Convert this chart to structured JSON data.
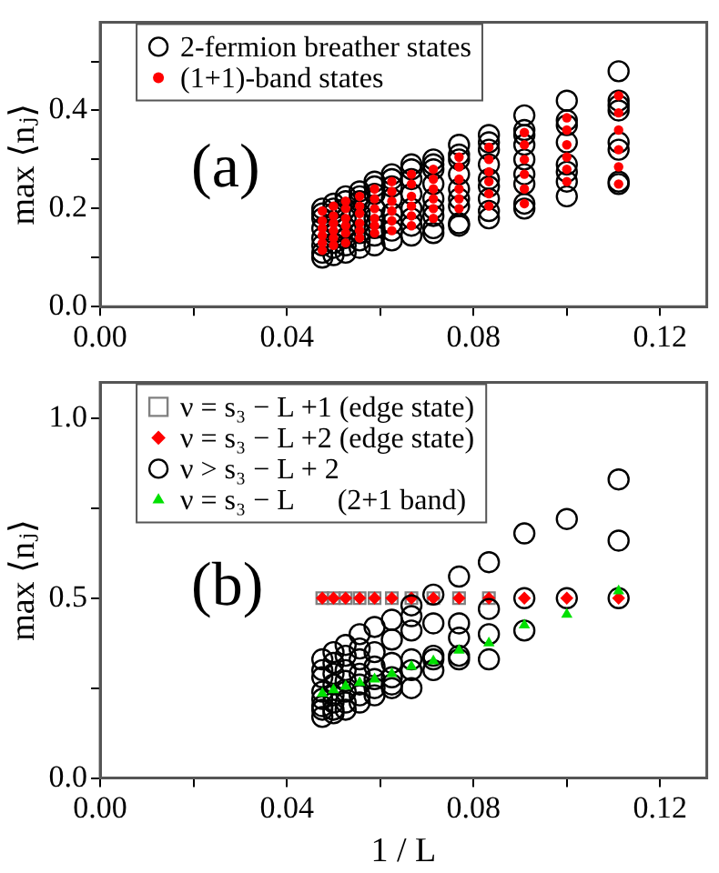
{
  "chart_data": [
    {
      "type": "scatter",
      "ylabel": "max ⟨nⱼ⟩",
      "annotations": [
        "(a)"
      ],
      "xlim": [
        0,
        0.13
      ],
      "xticks": [
        {
          "value": 0,
          "label": "0.00"
        },
        {
          "value": 0.02,
          "label": null
        },
        {
          "value": 0.04,
          "label": "0.04"
        },
        {
          "value": 0.06,
          "label": null
        },
        {
          "value": 0.08,
          "label": "0.08"
        },
        {
          "value": 0.1,
          "label": null
        },
        {
          "value": 0.12,
          "label": "0.12"
        }
      ],
      "ylim": [
        0,
        0.58
      ],
      "yticks": [
        {
          "value": 0,
          "label": "0.0"
        },
        {
          "value": 0.1,
          "label": null
        },
        {
          "value": 0.2,
          "label": "0.2"
        },
        {
          "value": 0.3,
          "label": null
        },
        {
          "value": 0.4,
          "label": "0.4"
        },
        {
          "value": 0.5,
          "label": null
        }
      ],
      "grid": false,
      "legend": "top left",
      "series": [
        {
          "name": "2-fermion breather states",
          "color": "#000000",
          "marker": "circle",
          "x": [
            0.0476,
            0.0476,
            0.0476,
            0.0476,
            0.0476,
            0.0476,
            0.0476,
            0.0476,
            0.05,
            0.05,
            0.05,
            0.05,
            0.05,
            0.05,
            0.05,
            0.05,
            0.0526,
            0.0526,
            0.0526,
            0.0526,
            0.0526,
            0.0526,
            0.0526,
            0.0526,
            0.0556,
            0.0556,
            0.0556,
            0.0556,
            0.0556,
            0.0556,
            0.0556,
            0.0556,
            0.0588,
            0.0588,
            0.0588,
            0.0588,
            0.0588,
            0.0588,
            0.0588,
            0.0588,
            0.0625,
            0.0625,
            0.0625,
            0.0625,
            0.0625,
            0.0625,
            0.0625,
            0.0625,
            0.0667,
            0.0667,
            0.0667,
            0.0667,
            0.0667,
            0.0667,
            0.0667,
            0.0667,
            0.0714,
            0.0714,
            0.0714,
            0.0714,
            0.0714,
            0.0714,
            0.0714,
            0.0714,
            0.0714,
            0.0769,
            0.0769,
            0.0769,
            0.0769,
            0.0769,
            0.0769,
            0.0769,
            0.0769,
            0.0769,
            0.0833,
            0.0833,
            0.0833,
            0.0833,
            0.0833,
            0.0833,
            0.0833,
            0.0833,
            0.0833,
            0.0909,
            0.0909,
            0.0909,
            0.0909,
            0.0909,
            0.0909,
            0.0909,
            0.0909,
            0.0909,
            0.1,
            0.1,
            0.1,
            0.1,
            0.1,
            0.1,
            0.1,
            0.1,
            0.1111,
            0.1111,
            0.1111,
            0.1111,
            0.1111,
            0.1111,
            0.1111,
            0.1111
          ],
          "values": [
            0.2,
            0.19,
            0.18,
            0.16,
            0.14,
            0.125,
            0.11,
            0.1,
            0.21,
            0.2,
            0.19,
            0.17,
            0.15,
            0.13,
            0.12,
            0.105,
            0.225,
            0.215,
            0.2,
            0.18,
            0.16,
            0.14,
            0.125,
            0.11,
            0.235,
            0.225,
            0.215,
            0.19,
            0.17,
            0.15,
            0.135,
            0.12,
            0.255,
            0.245,
            0.23,
            0.2,
            0.18,
            0.16,
            0.145,
            0.125,
            0.27,
            0.26,
            0.245,
            0.22,
            0.19,
            0.17,
            0.155,
            0.135,
            0.29,
            0.28,
            0.26,
            0.23,
            0.2,
            0.18,
            0.165,
            0.145,
            0.3,
            0.29,
            0.28,
            0.25,
            0.22,
            0.2,
            0.185,
            0.16,
            0.15,
            0.33,
            0.31,
            0.3,
            0.27,
            0.24,
            0.22,
            0.205,
            0.17,
            0.165,
            0.35,
            0.335,
            0.32,
            0.29,
            0.26,
            0.245,
            0.22,
            0.195,
            0.18,
            0.39,
            0.36,
            0.35,
            0.33,
            0.3,
            0.27,
            0.25,
            0.21,
            0.2,
            0.42,
            0.38,
            0.37,
            0.335,
            0.29,
            0.275,
            0.255,
            0.225,
            0.48,
            0.42,
            0.41,
            0.4,
            0.335,
            0.32,
            0.255,
            0.25
          ]
        },
        {
          "name": "(1+1)-band states",
          "color": "#ff0000",
          "marker": "circle",
          "x": [
            0.0476,
            0.0476,
            0.0476,
            0.0476,
            0.0476,
            0.0476,
            0.05,
            0.05,
            0.05,
            0.05,
            0.05,
            0.05,
            0.0526,
            0.0526,
            0.0526,
            0.0526,
            0.0526,
            0.0526,
            0.0556,
            0.0556,
            0.0556,
            0.0556,
            0.0556,
            0.0556,
            0.0588,
            0.0588,
            0.0588,
            0.0588,
            0.0588,
            0.0588,
            0.0625,
            0.0625,
            0.0625,
            0.0625,
            0.0625,
            0.0625,
            0.0667,
            0.0667,
            0.0667,
            0.0667,
            0.0667,
            0.0667,
            0.0714,
            0.0714,
            0.0714,
            0.0714,
            0.0714,
            0.0714,
            0.0769,
            0.0769,
            0.0769,
            0.0769,
            0.0769,
            0.0769,
            0.0833,
            0.0833,
            0.0833,
            0.0833,
            0.0833,
            0.0833,
            0.0909,
            0.0909,
            0.0909,
            0.0909,
            0.0909,
            0.0909,
            0.1,
            0.1,
            0.1,
            0.1,
            0.1,
            0.1,
            0.1111,
            0.1111,
            0.1111,
            0.1111,
            0.1111,
            0.1111
          ],
          "values": [
            0.115,
            0.13,
            0.145,
            0.16,
            0.175,
            0.195,
            0.125,
            0.14,
            0.155,
            0.17,
            0.185,
            0.205,
            0.13,
            0.15,
            0.165,
            0.18,
            0.2,
            0.215,
            0.14,
            0.155,
            0.17,
            0.19,
            0.205,
            0.225,
            0.15,
            0.165,
            0.18,
            0.2,
            0.22,
            0.24,
            0.155,
            0.175,
            0.195,
            0.215,
            0.235,
            0.255,
            0.165,
            0.185,
            0.205,
            0.225,
            0.25,
            0.27,
            0.18,
            0.2,
            0.22,
            0.24,
            0.26,
            0.28,
            0.2,
            0.22,
            0.24,
            0.26,
            0.285,
            0.305,
            0.205,
            0.23,
            0.255,
            0.275,
            0.3,
            0.325,
            0.21,
            0.24,
            0.27,
            0.3,
            0.33,
            0.355,
            0.255,
            0.28,
            0.305,
            0.33,
            0.36,
            0.385,
            0.25,
            0.285,
            0.32,
            0.36,
            0.395,
            0.43
          ]
        }
      ]
    },
    {
      "type": "scatter",
      "xlabel": "1 / L",
      "ylabel": "max ⟨nⱼ⟩",
      "annotations": [
        "(b)"
      ],
      "xlim": [
        0,
        0.13
      ],
      "xticks": [
        {
          "value": 0,
          "label": "0.00"
        },
        {
          "value": 0.02,
          "label": null
        },
        {
          "value": 0.04,
          "label": "0.04"
        },
        {
          "value": 0.06,
          "label": null
        },
        {
          "value": 0.08,
          "label": "0.08"
        },
        {
          "value": 0.1,
          "label": null
        },
        {
          "value": 0.12,
          "label": "0.12"
        }
      ],
      "ylim": [
        0,
        1.1
      ],
      "yticks": [
        {
          "value": 0,
          "label": "0.0"
        },
        {
          "value": 0.25,
          "label": null
        },
        {
          "value": 0.5,
          "label": "0.5"
        },
        {
          "value": 0.75,
          "label": null
        },
        {
          "value": 1,
          "label": "1.0"
        }
      ],
      "grid": false,
      "legend": "top left",
      "series": [
        {
          "name": "ν = s₃ − L +1 (edge state)",
          "color": "#808080",
          "marker": "square",
          "x": [
            0.0476,
            0.05,
            0.0526,
            0.0556,
            0.0588,
            0.0625,
            0.0667,
            0.0714,
            0.0769,
            0.0833
          ],
          "values": [
            0.5,
            0.5,
            0.5,
            0.5,
            0.5,
            0.5,
            0.5,
            0.5,
            0.5,
            0.5
          ]
        },
        {
          "name": "ν = s₃ − L +2 (edge state)",
          "color": "#ff0000",
          "marker": "diamond",
          "x": [
            0.0476,
            0.05,
            0.0526,
            0.0556,
            0.0588,
            0.0625,
            0.0667,
            0.0714,
            0.0769,
            0.0833,
            0.0909,
            0.1,
            0.1111
          ],
          "values": [
            0.5,
            0.5,
            0.5,
            0.5,
            0.5,
            0.5,
            0.5,
            0.5,
            0.5,
            0.5,
            0.5,
            0.5,
            0.5
          ]
        },
        {
          "name": "ν > s₃ − L + 2",
          "color": "#000000",
          "marker": "circle",
          "x": [
            0.0476,
            0.0476,
            0.0476,
            0.0476,
            0.0476,
            0.0476,
            0.0476,
            0.0476,
            0.05,
            0.05,
            0.05,
            0.05,
            0.05,
            0.05,
            0.05,
            0.05,
            0.0526,
            0.0526,
            0.0526,
            0.0526,
            0.0526,
            0.0526,
            0.0526,
            0.0556,
            0.0556,
            0.0556,
            0.0556,
            0.0556,
            0.0556,
            0.0556,
            0.0588,
            0.0588,
            0.0588,
            0.0588,
            0.0588,
            0.0588,
            0.0625,
            0.0625,
            0.0625,
            0.0625,
            0.0625,
            0.0625,
            0.0667,
            0.0667,
            0.0667,
            0.0667,
            0.0667,
            0.0667,
            0.0714,
            0.0714,
            0.0714,
            0.0714,
            0.0714,
            0.0769,
            0.0769,
            0.0769,
            0.0769,
            0.0769,
            0.0833,
            0.0833,
            0.0833,
            0.0833,
            0.0909,
            0.0909,
            0.0909,
            0.1,
            0.1,
            0.1111,
            0.1111,
            0.1111
          ],
          "values": [
            0.33,
            0.3,
            0.28,
            0.24,
            0.22,
            0.2,
            0.19,
            0.17,
            0.35,
            0.32,
            0.29,
            0.26,
            0.23,
            0.21,
            0.19,
            0.18,
            0.37,
            0.34,
            0.3,
            0.27,
            0.24,
            0.21,
            0.19,
            0.4,
            0.36,
            0.33,
            0.29,
            0.26,
            0.23,
            0.21,
            0.42,
            0.35,
            0.31,
            0.275,
            0.25,
            0.23,
            0.44,
            0.385,
            0.32,
            0.28,
            0.26,
            0.25,
            0.48,
            0.45,
            0.41,
            0.33,
            0.3,
            0.25,
            0.51,
            0.43,
            0.34,
            0.33,
            0.3,
            0.56,
            0.43,
            0.39,
            0.34,
            0.33,
            0.6,
            0.47,
            0.4,
            0.33,
            0.68,
            0.5,
            0.41,
            0.72,
            0.5,
            0.83,
            0.66,
            0.5
          ]
        },
        {
          "name": "ν = s₃ − L      (2+1 band)",
          "color": "#00e000",
          "marker": "triangle",
          "x": [
            0.0476,
            0.05,
            0.0526,
            0.0556,
            0.0588,
            0.0625,
            0.0667,
            0.0714,
            0.0769,
            0.0833,
            0.0909,
            0.1,
            0.1111
          ],
          "values": [
            0.235,
            0.245,
            0.255,
            0.265,
            0.275,
            0.29,
            0.31,
            0.325,
            0.355,
            0.375,
            0.425,
            0.455,
            0.52
          ]
        }
      ]
    }
  ]
}
